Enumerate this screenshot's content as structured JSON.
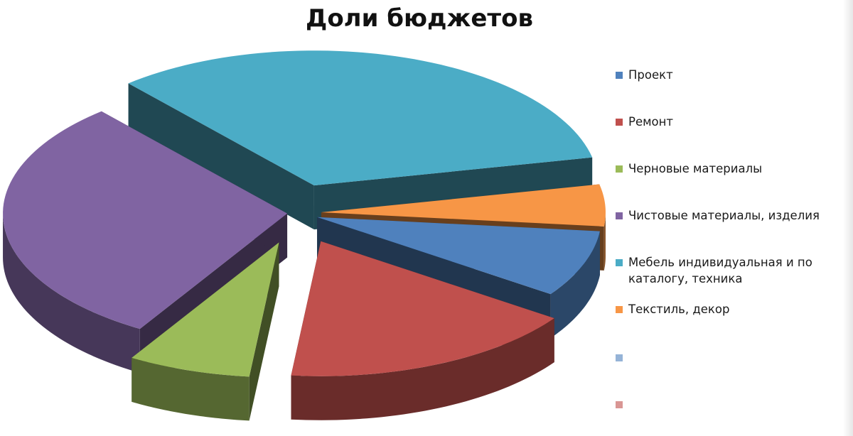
{
  "chart_data": {
    "type": "pie",
    "title": "Доли бюджетов",
    "categories": [
      "Проект",
      "Ремонт",
      "Черновые материалы",
      "Чистовые материалы, изделия",
      "Мебель индивидуальная и по каталогу, техника",
      "Текстиль, декор"
    ],
    "values": [
      8,
      17,
      7,
      30,
      33,
      5
    ],
    "colors": [
      "#4f81bd",
      "#c0504d",
      "#9bbb59",
      "#8064a2",
      "#4bacc6",
      "#f79646"
    ],
    "exploded": true,
    "three_d": true,
    "legend": {
      "placement": "right",
      "extra_swatch_colors": [
        "#95b3d7",
        "#d99694"
      ]
    }
  }
}
